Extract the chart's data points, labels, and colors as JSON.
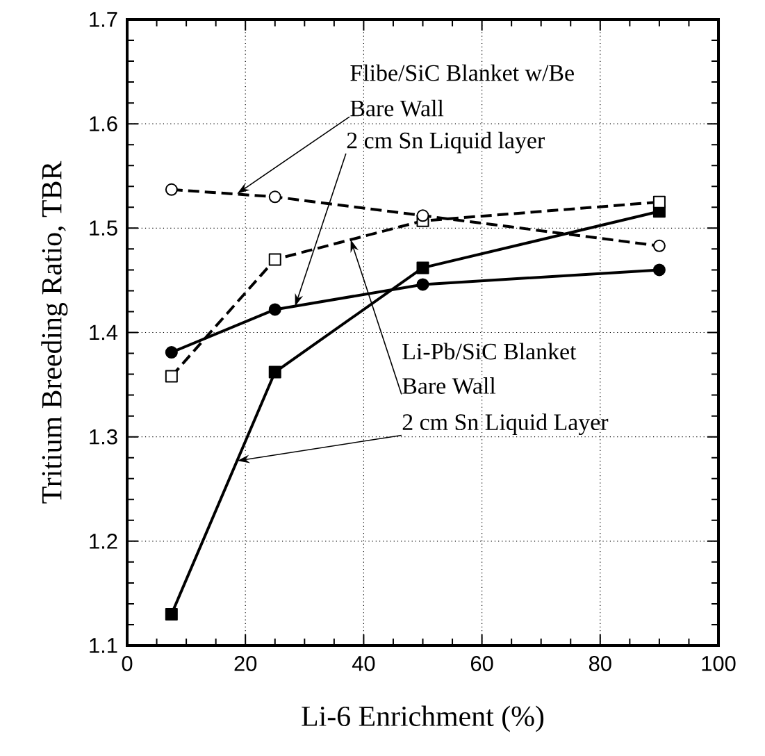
{
  "chart_data": {
    "type": "line",
    "xlabel": "Li-6 Enrichment (%)",
    "ylabel": "Tritium Breeding Ratio, TBR",
    "x": [
      7.5,
      25,
      50,
      90
    ],
    "series": [
      {
        "color": "#000000",
        "values": [
          1.537,
          1.53,
          1.512,
          1.483
        ],
        "marker": "circle",
        "line_style": "dashed"
      },
      {
        "color": "#000000",
        "values": [
          1.358,
          1.47,
          1.507,
          1.525
        ],
        "marker": "square",
        "line_style": "dashed"
      },
      {
        "color": "#000000",
        "values": [
          1.381,
          1.422,
          1.446,
          1.46
        ],
        "marker": "circle",
        "line_style": "solid"
      },
      {
        "color": "#000000",
        "values": [
          1.13,
          1.362,
          1.462,
          1.516
        ],
        "marker": "square",
        "line_style": "solid"
      }
    ],
    "xlim": [
      0,
      100
    ],
    "xticks": [
      0,
      20,
      40,
      60,
      80,
      100
    ],
    "ylim": [
      1.1,
      1.7
    ],
    "yticks": [
      1.1,
      1.2,
      1.3,
      1.4,
      1.5,
      1.6,
      1.7
    ],
    "grid": true,
    "annotations": [
      "Flibe/SiC Blanket w/Be",
      "Bare Wall",
      "2 cm Sn Liquid layer",
      "Li-Pb/SiC Blanket",
      "Bare Wall",
      "2 cm Sn Liquid Layer"
    ]
  }
}
